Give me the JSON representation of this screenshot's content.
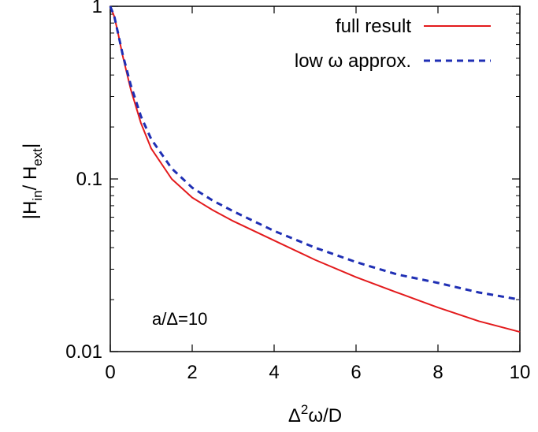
{
  "chart_data": {
    "type": "line",
    "xlabel": {
      "base": "Δ",
      "sup": "2",
      "rest": "ω/D"
    },
    "ylabel": {
      "open": "|H",
      "sub1": "in",
      "mid": "/ H",
      "sub2": "ext",
      "close": "|"
    },
    "xlim": [
      0,
      10
    ],
    "ylim": [
      0.01,
      1
    ],
    "yscale": "log",
    "x_ticks": [
      0,
      2,
      4,
      6,
      8,
      10
    ],
    "x_tick_labels": [
      "0",
      "2",
      "4",
      "6",
      "8",
      "10"
    ],
    "y_ticks": [
      1,
      0.1,
      0.01
    ],
    "y_tick_labels": [
      "1",
      "0.1",
      "0.01"
    ],
    "grid": false,
    "legend_position": "top-right",
    "annotation": "a/Δ=10",
    "series": [
      {
        "name": "full result",
        "color": "#e31a1c",
        "dash": "solid",
        "x": [
          0,
          0.1,
          0.2,
          0.3,
          0.5,
          0.75,
          1,
          1.5,
          2,
          2.5,
          3,
          4,
          5,
          6,
          7,
          8,
          9,
          10
        ],
        "y": [
          1,
          0.87,
          0.68,
          0.52,
          0.33,
          0.21,
          0.15,
          0.1,
          0.078,
          0.066,
          0.057,
          0.044,
          0.034,
          0.027,
          0.022,
          0.018,
          0.015,
          0.013
        ]
      },
      {
        "name": "low ω approx.",
        "color": "#1f2fb4",
        "dash": "dashed",
        "x": [
          0,
          0.1,
          0.2,
          0.3,
          0.5,
          0.75,
          1,
          1.5,
          2,
          2.5,
          3,
          4,
          5,
          6,
          7,
          8,
          9,
          10
        ],
        "y": [
          1,
          0.87,
          0.68,
          0.53,
          0.35,
          0.23,
          0.17,
          0.115,
          0.089,
          0.075,
          0.065,
          0.05,
          0.04,
          0.033,
          0.028,
          0.025,
          0.022,
          0.02
        ]
      }
    ]
  }
}
